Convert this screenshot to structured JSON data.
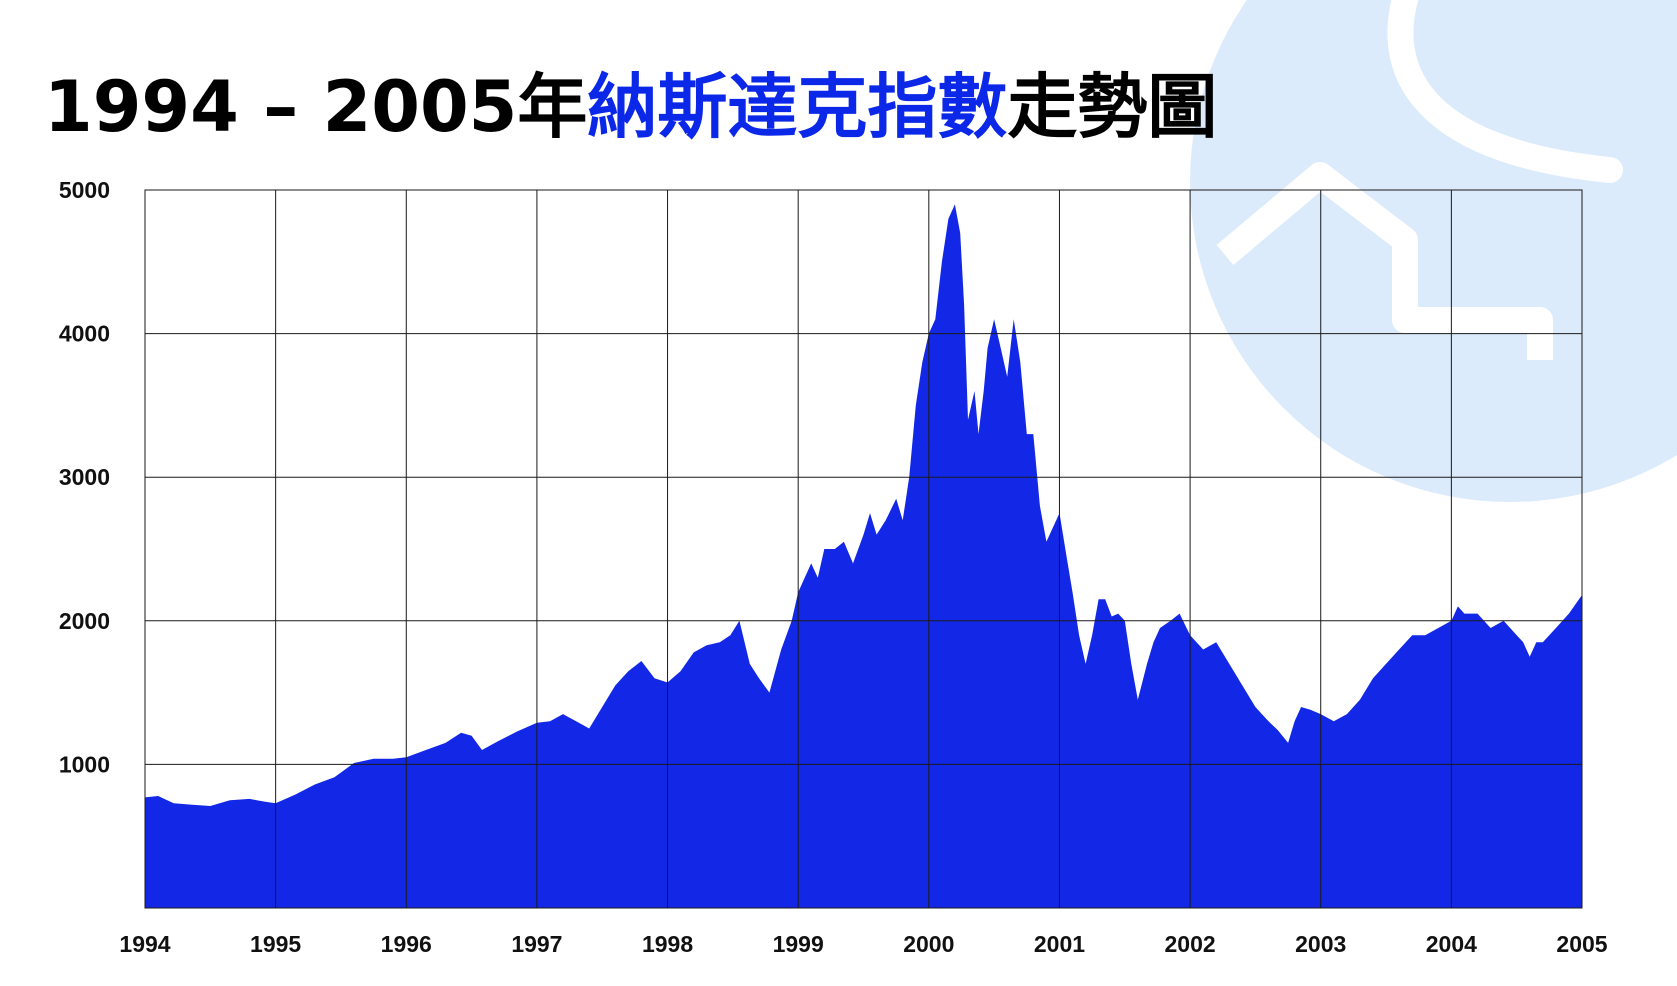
{
  "title": {
    "years": "1994 – 2005年",
    "name": "納斯達克指數",
    "rest": "走勢圖"
  },
  "colors": {
    "title_accent": "#0b28e8",
    "area_fill": "#1228e6",
    "grid": "#1a1a1a",
    "decor_circle": "#dcebfb",
    "decor_stroke": "#ffffff"
  },
  "chart_data": {
    "type": "area",
    "title": "1994 – 2005年納斯達克指數走勢圖",
    "xlabel": "",
    "ylabel": "",
    "xlim": [
      1994,
      2005
    ],
    "ylim": [
      0,
      5000
    ],
    "grid": true,
    "legend": "none",
    "x_ticks": [
      "1994",
      "1995",
      "1996",
      "1997",
      "1998",
      "1999",
      "2000",
      "2001",
      "2002",
      "2003",
      "2004",
      "2005"
    ],
    "y_ticks": [
      "1000",
      "2000",
      "3000",
      "4000",
      "5000"
    ],
    "series": [
      {
        "name": "",
        "x": [
          1994.0,
          1994.1,
          1994.22,
          1994.35,
          1994.5,
          1994.65,
          1994.8,
          1994.92,
          1995.0,
          1995.15,
          1995.3,
          1995.45,
          1995.6,
          1995.75,
          1995.9,
          1996.0,
          1996.15,
          1996.3,
          1996.42,
          1996.5,
          1996.58,
          1996.7,
          1996.85,
          1997.0,
          1997.1,
          1997.2,
          1997.3,
          1997.4,
          1997.5,
          1997.6,
          1997.7,
          1997.8,
          1997.9,
          1998.0,
          1998.1,
          1998.2,
          1998.3,
          1998.4,
          1998.48,
          1998.55,
          1998.63,
          1998.7,
          1998.78,
          1998.87,
          1998.95,
          1999.0,
          1999.05,
          1999.1,
          1999.15,
          1999.2,
          1999.28,
          1999.35,
          1999.42,
          1999.5,
          1999.55,
          1999.6,
          1999.67,
          1999.75,
          1999.8,
          1999.85,
          1999.9,
          1999.95,
          2000.0,
          2000.05,
          2000.1,
          2000.15,
          2000.2,
          2000.24,
          2000.27,
          2000.3,
          2000.35,
          2000.38,
          2000.42,
          2000.45,
          2000.5,
          2000.55,
          2000.6,
          2000.65,
          2000.7,
          2000.75,
          2000.8,
          2000.85,
          2000.9,
          2000.95,
          2001.0,
          2001.05,
          2001.1,
          2001.15,
          2001.2,
          2001.25,
          2001.3,
          2001.35,
          2001.4,
          2001.45,
          2001.5,
          2001.55,
          2001.6,
          2001.67,
          2001.72,
          2001.77,
          2001.85,
          2001.92,
          2002.0,
          2002.1,
          2002.2,
          2002.3,
          2002.4,
          2002.5,
          2002.55,
          2002.6,
          2002.67,
          2002.75,
          2002.8,
          2002.85,
          2002.92,
          2003.0,
          2003.1,
          2003.2,
          2003.3,
          2003.4,
          2003.5,
          2003.6,
          2003.7,
          2003.8,
          2003.9,
          2004.0,
          2004.05,
          2004.1,
          2004.2,
          2004.3,
          2004.4,
          2004.5,
          2004.55,
          2004.6,
          2004.65,
          2004.7,
          2004.8,
          2004.9,
          2005.0
        ],
        "values": [
          770,
          780,
          730,
          720,
          710,
          750,
          760,
          740,
          730,
          790,
          860,
          910,
          1010,
          1040,
          1040,
          1050,
          1100,
          1150,
          1220,
          1200,
          1100,
          1160,
          1230,
          1290,
          1300,
          1350,
          1300,
          1250,
          1400,
          1550,
          1650,
          1720,
          1600,
          1570,
          1650,
          1780,
          1830,
          1850,
          1900,
          2000,
          1700,
          1600,
          1500,
          1800,
          2000,
          2200,
          2300,
          2400,
          2300,
          2500,
          2500,
          2550,
          2400,
          2600,
          2750,
          2600,
          2700,
          2850,
          2700,
          3000,
          3500,
          3800,
          4000,
          4100,
          4500,
          4800,
          4900,
          4700,
          4200,
          3400,
          3600,
          3300,
          3600,
          3900,
          4100,
          3900,
          3700,
          4100,
          3800,
          3300,
          3300,
          2800,
          2550,
          2650,
          2750,
          2470,
          2200,
          1900,
          1700,
          1900,
          2150,
          2150,
          2030,
          2050,
          2000,
          1700,
          1450,
          1700,
          1850,
          1950,
          2000,
          2050,
          1900,
          1800,
          1850,
          1700,
          1550,
          1400,
          1350,
          1300,
          1240,
          1150,
          1300,
          1400,
          1380,
          1350,
          1300,
          1350,
          1450,
          1600,
          1700,
          1800,
          1900,
          1900,
          1950,
          2000,
          2100,
          2050,
          2050,
          1950,
          2000,
          1900,
          1850,
          1750,
          1850,
          1850,
          1950,
          2050,
          2180
        ]
      }
    ]
  }
}
